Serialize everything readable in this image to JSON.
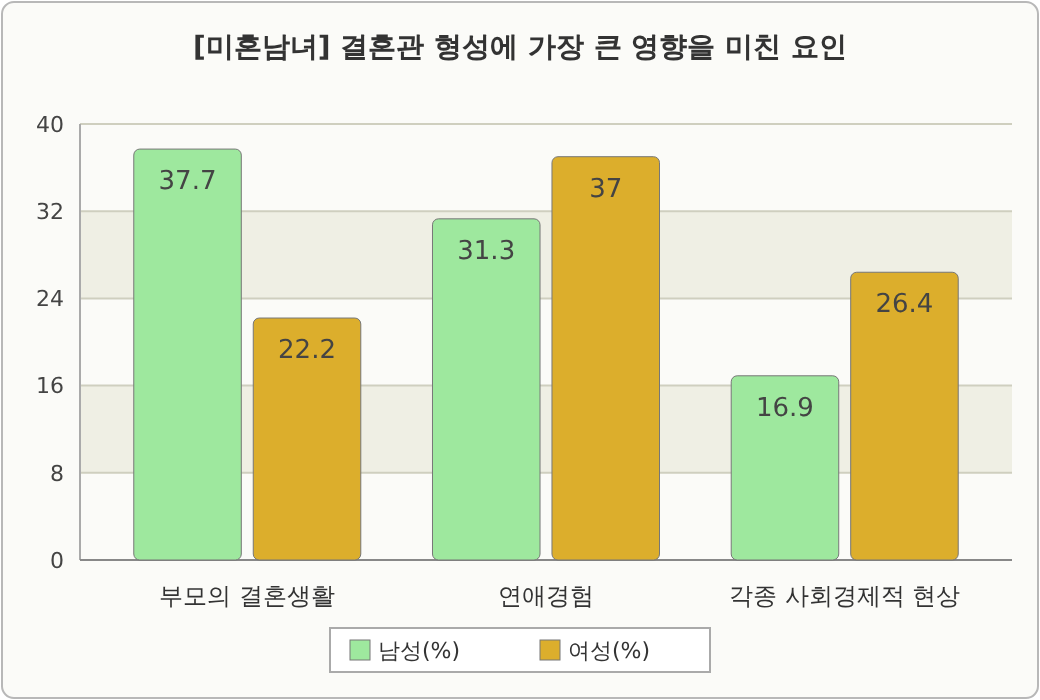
{
  "chart_data": {
    "type": "bar",
    "title": "[미혼남녀] 결혼관 형성에 가장 큰 영향을 미친 요인",
    "categories": [
      "부모의 결혼생활",
      "연애경험",
      "각종 사회경제적 현상"
    ],
    "series": [
      {
        "name": "남성(%)",
        "color": "#9ee89e",
        "values": [
          37.7,
          31.3,
          16.9
        ]
      },
      {
        "name": "여성(%)",
        "color": "#dcae2c",
        "values": [
          22.2,
          37,
          26.4
        ]
      }
    ],
    "ylim": [
      0,
      40
    ],
    "yticks": [
      0,
      8,
      16,
      24,
      32,
      40
    ],
    "grid": "y",
    "legend": "bottom",
    "data_labels": true
  }
}
